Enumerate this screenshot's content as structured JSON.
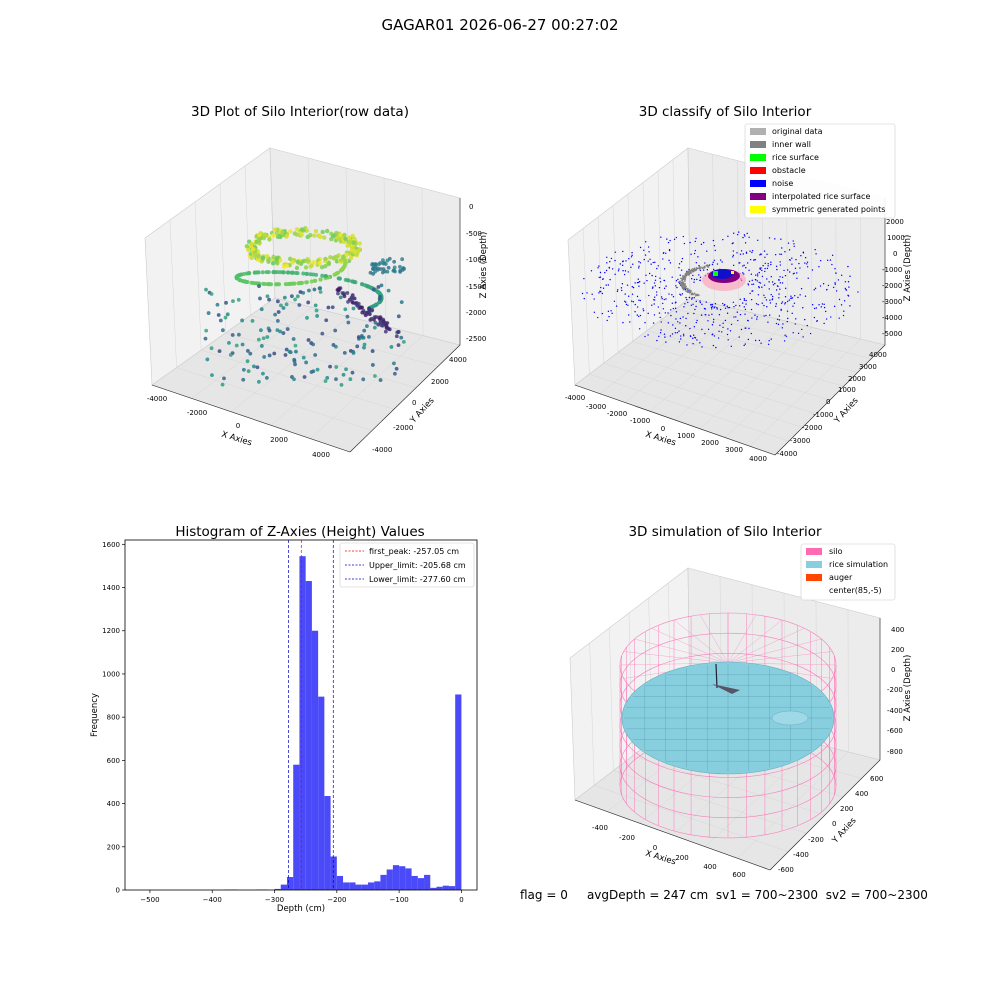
{
  "suptitle": "GAGAR01 2026-06-27 00:27:02",
  "footer": {
    "flag": "flag = 0",
    "avg": "avgDepth = 247 cm",
    "sv1": "sv1 = 700~2300",
    "sv2": "sv2 = 700~2300"
  },
  "chart_data": [
    {
      "type": "scatter",
      "title": "3D Plot of Silo Interior(row data)",
      "xlabel": "X Axies",
      "ylabel": "Y Axies",
      "zlabel": "Z Axies (Depth)",
      "x_ticks": [
        "-4000",
        "-2000",
        "0",
        "2000",
        "4000"
      ],
      "y_ticks": [
        "-4000",
        "-2000",
        "0",
        "2000",
        "4000"
      ],
      "z_ticks": [
        "0",
        "-500",
        "-1000",
        "-1500",
        "-2000",
        "-2500"
      ],
      "colormap": "viridis"
    },
    {
      "type": "scatter",
      "title": "3D classify of Silo Interior",
      "xlabel": "X Axies",
      "ylabel": "Y Axies",
      "zlabel": "Z Axies (Depth)",
      "x_ticks": [
        "-4000",
        "-3000",
        "-2000",
        "-1000",
        "0",
        "1000",
        "2000",
        "3000",
        "4000"
      ],
      "y_ticks": [
        "-4000",
        "-3000",
        "-2000",
        "-1000",
        "0",
        "1000",
        "2000",
        "3000",
        "4000"
      ],
      "z_ticks": [
        "2000",
        "1000",
        "0",
        "-1000",
        "-2000",
        "-3000",
        "-4000",
        "-5000"
      ],
      "legend": [
        {
          "label": "original data",
          "color": "#b0b0b0"
        },
        {
          "label": "inner wall",
          "color": "#808080"
        },
        {
          "label": "rice surface",
          "color": "#00ff00"
        },
        {
          "label": "obstacle",
          "color": "#ff0000"
        },
        {
          "label": "noise",
          "color": "#0000ff"
        },
        {
          "label": "interpolated rice surface",
          "color": "#800080"
        },
        {
          "label": "symmetric generated points",
          "color": "#ffff00"
        }
      ]
    },
    {
      "type": "bar",
      "title": "Histogram of Z-Axies (Height) Values",
      "xlabel": "Depth (cm)",
      "ylabel": "Frequency",
      "xlim": [
        -540,
        25
      ],
      "ylim": [
        0,
        1620
      ],
      "x_ticks": [
        -500,
        -400,
        -300,
        -200,
        -100,
        0
      ],
      "y_ticks": [
        0,
        200,
        400,
        600,
        800,
        1000,
        1200,
        1400,
        1600
      ],
      "bin_width": 10,
      "bins": [
        [
          -380,
          2
        ],
        [
          -370,
          2
        ],
        [
          -330,
          2
        ],
        [
          -320,
          2
        ],
        [
          -300,
          5
        ],
        [
          -290,
          25
        ],
        [
          -280,
          60
        ],
        [
          -270,
          580
        ],
        [
          -260,
          1545
        ],
        [
          -250,
          1430
        ],
        [
          -240,
          1200
        ],
        [
          -230,
          895
        ],
        [
          -220,
          435
        ],
        [
          -210,
          155
        ],
        [
          -200,
          65
        ],
        [
          -190,
          35
        ],
        [
          -180,
          35
        ],
        [
          -170,
          25
        ],
        [
          -160,
          25
        ],
        [
          -150,
          35
        ],
        [
          -140,
          40
        ],
        [
          -130,
          70
        ],
        [
          -120,
          95
        ],
        [
          -110,
          115
        ],
        [
          -100,
          110
        ],
        [
          -90,
          100
        ],
        [
          -80,
          65
        ],
        [
          -70,
          55
        ],
        [
          -60,
          70
        ],
        [
          -50,
          10
        ],
        [
          -40,
          15
        ],
        [
          -30,
          20
        ],
        [
          -20,
          18
        ],
        [
          -10,
          905
        ]
      ],
      "bar_color": "#4a4af8",
      "lines": [
        {
          "label": "first_peak: -257.05 cm",
          "x": -257.05,
          "color": "#ff0000"
        },
        {
          "label": "Upper_limit: -205.68 cm",
          "x": -205.68,
          "color": "#0000cc"
        },
        {
          "label": "Lower_limit: -277.60 cm",
          "x": -277.6,
          "color": "#0000cc"
        }
      ]
    },
    {
      "type": "surface",
      "title": "3D simulation of Silo Interior",
      "xlabel": "X Axies",
      "ylabel": "Y Axies",
      "zlabel": "Z Axies (Depth)",
      "x_ticks": [
        "-400",
        "-200",
        "0",
        "200",
        "400",
        "600"
      ],
      "y_ticks": [
        "-600",
        "-400",
        "-200",
        "0",
        "200",
        "400",
        "600"
      ],
      "z_ticks": [
        "400",
        "200",
        "0",
        "-200",
        "-400",
        "-600",
        "-800"
      ],
      "legend": [
        {
          "label": "silo",
          "color": "#ff69b4"
        },
        {
          "label": "rice simulation",
          "color": "#87cede"
        },
        {
          "label": "auger",
          "color": "#ff4500"
        },
        {
          "label": "center(85,-5)",
          "color": ""
        }
      ]
    }
  ]
}
